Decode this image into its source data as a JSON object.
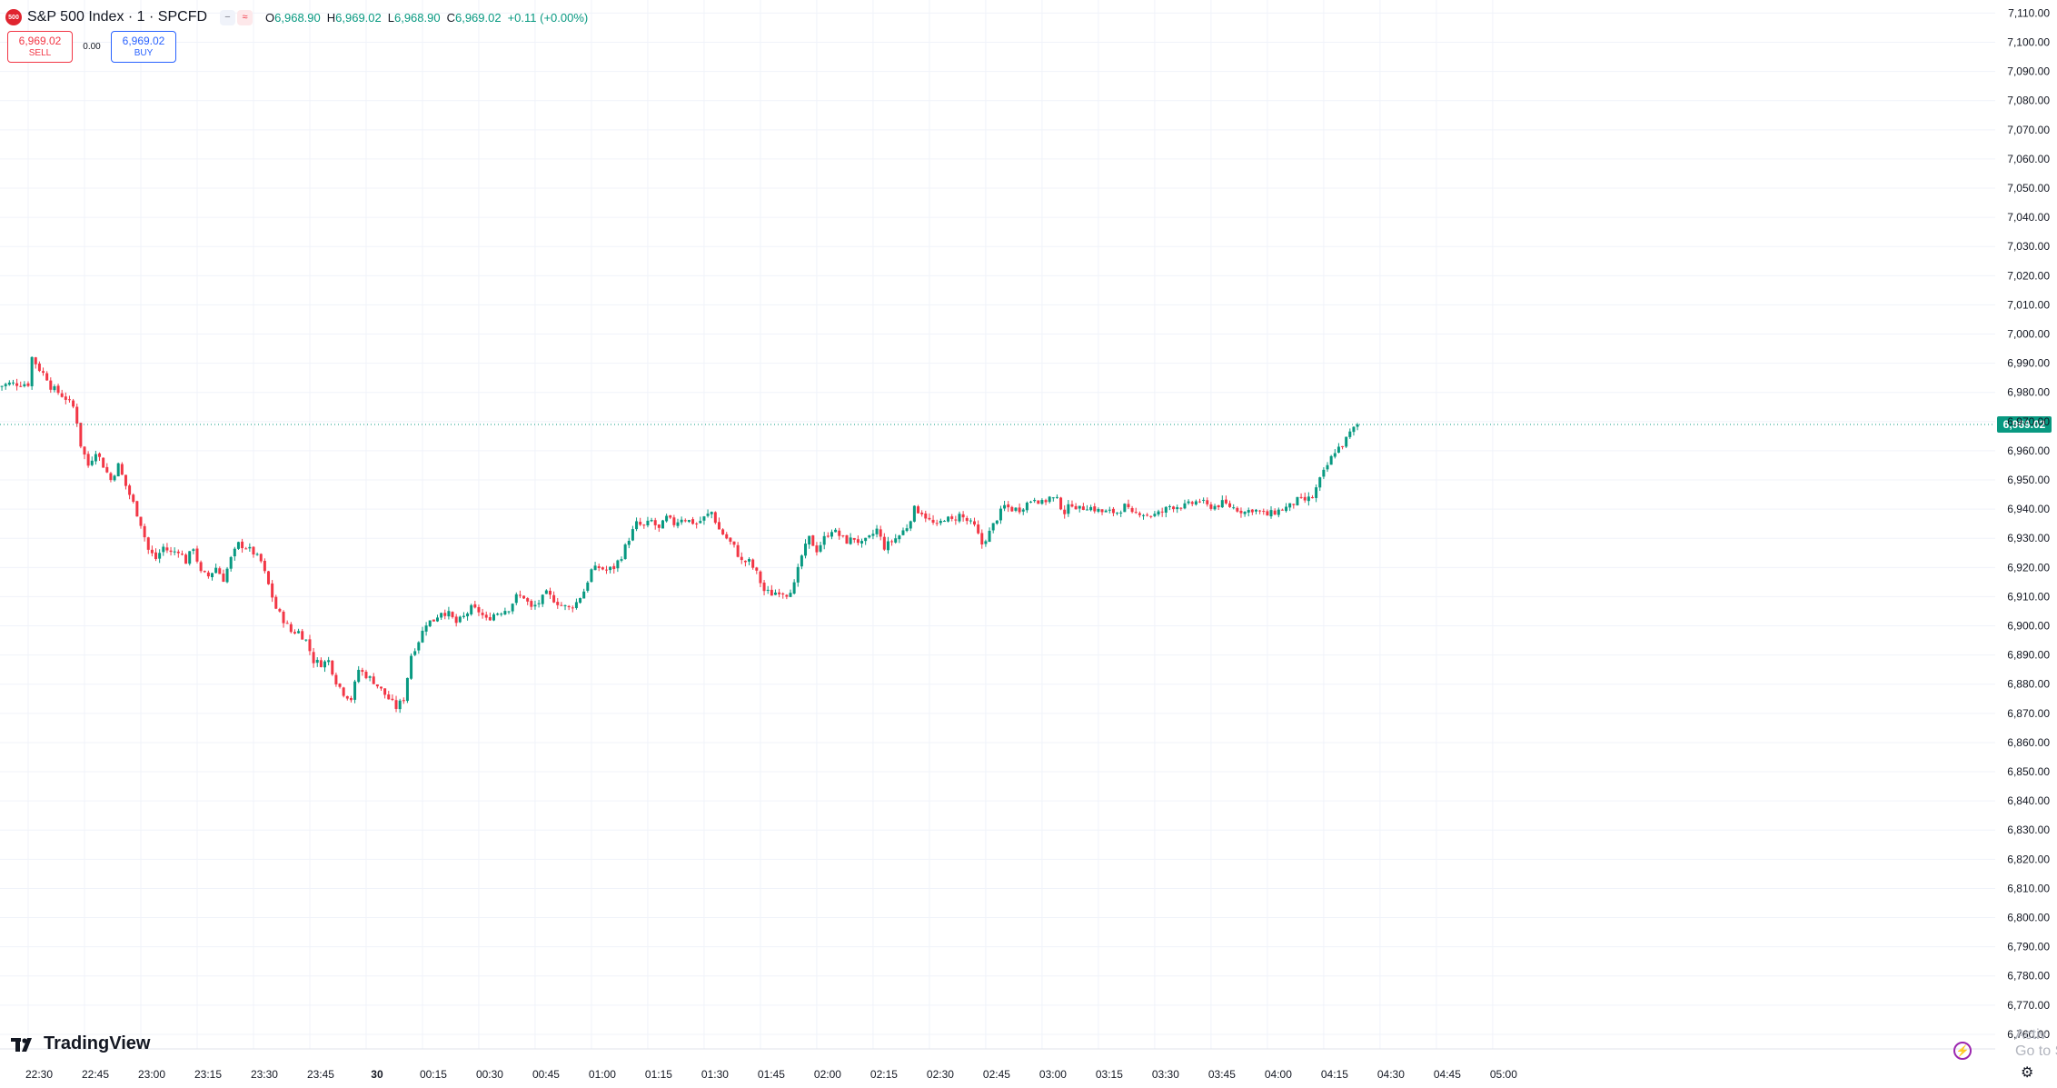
{
  "symbol": {
    "logo_text": "500",
    "title": "S&P 500 Index · 1 · SPCFD",
    "ohlc": [
      {
        "k": "O",
        "v": "6,968.90"
      },
      {
        "k": "H",
        "v": "6,969.02"
      },
      {
        "k": "L",
        "v": "6,968.90"
      },
      {
        "k": "C",
        "v": "6,969.02"
      },
      {
        "k": "",
        "v": "+0.11 (+0.00%)"
      }
    ]
  },
  "trade": {
    "sell_price": "6,969.02",
    "sell_label": "SELL",
    "spread": "0.00",
    "buy_price": "6,969.02",
    "buy_label": "BUY"
  },
  "branding": {
    "logo_text": "TradingView",
    "watermark": "Activ\nGo to S"
  },
  "colors": {
    "up": "#089981",
    "down": "#f23645",
    "price_line": "#089981",
    "grid": "#f0f3fa",
    "axis_text": "#131722"
  },
  "chart_data": {
    "type": "candlestick",
    "title": "S&P 500 Index · 1 · SPCFD",
    "interval": "1 minute",
    "last_price": 6969.02,
    "last_price_label": "6,969.02",
    "ylim": [
      6755,
      7112
    ],
    "y_ticks": [
      7110,
      7100,
      7090,
      7080,
      7070,
      7060,
      7050,
      7040,
      7030,
      7020,
      7010,
      7000,
      6990,
      6980,
      6970,
      6960,
      6950,
      6940,
      6930,
      6920,
      6910,
      6900,
      6890,
      6880,
      6870,
      6860,
      6850,
      6840,
      6830,
      6820,
      6810,
      6800,
      6790,
      6780,
      6770,
      6760
    ],
    "x_ticks": [
      {
        "label": "22:30",
        "min": 0
      },
      {
        "label": "22:45",
        "min": 15
      },
      {
        "label": "23:00",
        "min": 30
      },
      {
        "label": "23:15",
        "min": 45
      },
      {
        "label": "23:30",
        "min": 60
      },
      {
        "label": "23:45",
        "min": 75
      },
      {
        "label": "30",
        "min": 90
      },
      {
        "label": "00:15",
        "min": 105
      },
      {
        "label": "00:30",
        "min": 120
      },
      {
        "label": "00:45",
        "min": 135
      },
      {
        "label": "01:00",
        "min": 150
      },
      {
        "label": "01:15",
        "min": 165
      },
      {
        "label": "01:30",
        "min": 180
      },
      {
        "label": "01:45",
        "min": 195
      },
      {
        "label": "02:00",
        "min": 210
      },
      {
        "label": "02:15",
        "min": 225
      },
      {
        "label": "02:30",
        "min": 240
      },
      {
        "label": "02:45",
        "min": 255
      },
      {
        "label": "03:00",
        "min": 270
      },
      {
        "label": "03:15",
        "min": 285
      },
      {
        "label": "03:30",
        "min": 300
      },
      {
        "label": "03:45",
        "min": 315
      },
      {
        "label": "04:00",
        "min": 330
      },
      {
        "label": "04:15",
        "min": 345
      },
      {
        "label": "04:30",
        "min": 360
      },
      {
        "label": "04:45",
        "min": 375
      },
      {
        "label": "05:00",
        "min": 390
      }
    ],
    "start_minute": -8,
    "close_path": [
      [
        -8,
        6982
      ],
      [
        -5,
        6983
      ],
      [
        -3,
        6983
      ],
      [
        0,
        6983
      ],
      [
        1,
        6992
      ],
      [
        3,
        6988
      ],
      [
        5,
        6985
      ],
      [
        6,
        6982
      ],
      [
        8,
        6980
      ],
      [
        10,
        6978
      ],
      [
        12,
        6975
      ],
      [
        13,
        6970
      ],
      [
        14,
        6962
      ],
      [
        16,
        6955
      ],
      [
        18,
        6960
      ],
      [
        20,
        6955
      ],
      [
        22,
        6950
      ],
      [
        24,
        6955
      ],
      [
        26,
        6948
      ],
      [
        28,
        6942
      ],
      [
        30,
        6935
      ],
      [
        32,
        6926
      ],
      [
        34,
        6923
      ],
      [
        36,
        6927
      ],
      [
        38,
        6925
      ],
      [
        40,
        6926
      ],
      [
        42,
        6922
      ],
      [
        44,
        6927
      ],
      [
        46,
        6918
      ],
      [
        48,
        6917
      ],
      [
        50,
        6920
      ],
      [
        52,
        6916
      ],
      [
        54,
        6923
      ],
      [
        56,
        6928
      ],
      [
        58,
        6927
      ],
      [
        60,
        6925
      ],
      [
        62,
        6922
      ],
      [
        64,
        6914
      ],
      [
        66,
        6906
      ],
      [
        68,
        6902
      ],
      [
        70,
        6898
      ],
      [
        72,
        6898
      ],
      [
        74,
        6895
      ],
      [
        76,
        6888
      ],
      [
        78,
        6887
      ],
      [
        80,
        6888
      ],
      [
        82,
        6881
      ],
      [
        84,
        6877
      ],
      [
        86,
        6875
      ],
      [
        88,
        6885
      ],
      [
        90,
        6883
      ],
      [
        92,
        6881
      ],
      [
        94,
        6878
      ],
      [
        96,
        6875
      ],
      [
        98,
        6872
      ],
      [
        100,
        6875
      ],
      [
        102,
        6890
      ],
      [
        104,
        6895
      ],
      [
        106,
        6901
      ],
      [
        108,
        6902
      ],
      [
        110,
        6905
      ],
      [
        112,
        6904
      ],
      [
        114,
        6901
      ],
      [
        116,
        6903
      ],
      [
        118,
        6906
      ],
      [
        120,
        6905
      ],
      [
        122,
        6902
      ],
      [
        124,
        6904
      ],
      [
        126,
        6905
      ],
      [
        128,
        6906
      ],
      [
        130,
        6910
      ],
      [
        132,
        6910
      ],
      [
        134,
        6906
      ],
      [
        136,
        6908
      ],
      [
        138,
        6911
      ],
      [
        140,
        6909
      ],
      [
        142,
        6907
      ],
      [
        144,
        6906
      ],
      [
        146,
        6908
      ],
      [
        148,
        6912
      ],
      [
        150,
        6919
      ],
      [
        152,
        6920
      ],
      [
        154,
        6919
      ],
      [
        156,
        6920
      ],
      [
        158,
        6924
      ],
      [
        160,
        6930
      ],
      [
        162,
        6935
      ],
      [
        164,
        6934
      ],
      [
        166,
        6936
      ],
      [
        168,
        6933
      ],
      [
        170,
        6937
      ],
      [
        172,
        6935
      ],
      [
        174,
        6937
      ],
      [
        176,
        6936
      ],
      [
        178,
        6935
      ],
      [
        180,
        6937
      ],
      [
        182,
        6939
      ],
      [
        184,
        6933
      ],
      [
        186,
        6930
      ],
      [
        188,
        6927
      ],
      [
        190,
        6922
      ],
      [
        192,
        6922
      ],
      [
        194,
        6918
      ],
      [
        196,
        6912
      ],
      [
        198,
        6911
      ],
      [
        200,
        6912
      ],
      [
        202,
        6911
      ],
      [
        204,
        6914
      ],
      [
        206,
        6924
      ],
      [
        208,
        6930
      ],
      [
        210,
        6926
      ],
      [
        212,
        6930
      ],
      [
        214,
        6933
      ],
      [
        216,
        6931
      ],
      [
        218,
        6929
      ],
      [
        220,
        6930
      ],
      [
        222,
        6928
      ],
      [
        224,
        6930
      ],
      [
        226,
        6933
      ],
      [
        228,
        6927
      ],
      [
        230,
        6929
      ],
      [
        232,
        6931
      ],
      [
        234,
        6934
      ],
      [
        236,
        6940
      ],
      [
        238,
        6939
      ],
      [
        240,
        6936
      ],
      [
        242,
        6934
      ],
      [
        244,
        6937
      ],
      [
        246,
        6936
      ],
      [
        248,
        6938
      ],
      [
        250,
        6936
      ],
      [
        252,
        6934
      ],
      [
        254,
        6928
      ],
      [
        256,
        6932
      ],
      [
        258,
        6937
      ],
      [
        260,
        6941
      ],
      [
        262,
        6940
      ],
      [
        264,
        6940
      ],
      [
        266,
        6942
      ],
      [
        268,
        6944
      ],
      [
        270,
        6942
      ],
      [
        272,
        6944
      ],
      [
        274,
        6943
      ],
      [
        276,
        6939
      ],
      [
        278,
        6942
      ],
      [
        280,
        6940
      ],
      [
        282,
        6941
      ],
      [
        284,
        6940
      ],
      [
        286,
        6939
      ],
      [
        288,
        6939
      ],
      [
        290,
        6939
      ],
      [
        292,
        6941
      ],
      [
        294,
        6938
      ],
      [
        296,
        6939
      ],
      [
        298,
        6938
      ],
      [
        300,
        6938
      ],
      [
        302,
        6939
      ],
      [
        304,
        6941
      ],
      [
        306,
        6941
      ],
      [
        308,
        6941
      ],
      [
        310,
        6942
      ],
      [
        312,
        6943
      ],
      [
        314,
        6941
      ],
      [
        316,
        6941
      ],
      [
        318,
        6942
      ],
      [
        320,
        6941
      ],
      [
        322,
        6940
      ],
      [
        324,
        6939
      ],
      [
        326,
        6940
      ],
      [
        328,
        6939
      ],
      [
        330,
        6938
      ],
      [
        332,
        6939
      ],
      [
        334,
        6940
      ],
      [
        336,
        6941
      ],
      [
        338,
        6943
      ],
      [
        340,
        6943
      ],
      [
        342,
        6944
      ],
      [
        344,
        6950
      ],
      [
        346,
        6955
      ],
      [
        348,
        6960
      ],
      [
        350,
        6962
      ],
      [
        352,
        6966
      ],
      [
        354,
        6969.02
      ]
    ],
    "note_x_axis": "minutes after 22:30"
  }
}
